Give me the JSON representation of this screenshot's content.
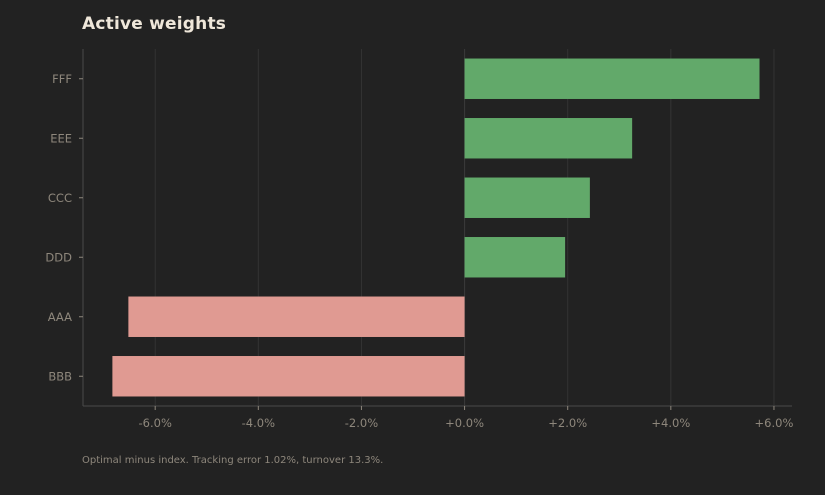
{
  "title": "Active weights",
  "caption": "Optimal minus index. Tracking error 1.02%, turnover 13.3%.",
  "colors": {
    "background": "#222222",
    "positive": "#62a96a",
    "negative": "#e09a92",
    "grid": "#333333",
    "axis": "#4a4a4a",
    "text": "#8e877c",
    "title": "#efe7da"
  },
  "chart_data": {
    "type": "bar",
    "orientation": "horizontal",
    "title": "Active weights",
    "xlabel": "",
    "ylabel": "",
    "categories": [
      "FFF",
      "EEE",
      "CCC",
      "DDD",
      "AAA",
      "BBB"
    ],
    "values": [
      5.72,
      3.25,
      2.43,
      1.95,
      -6.52,
      -6.83
    ],
    "xlim": [
      -7.4,
      6.35
    ],
    "xticks": [
      -6,
      -4,
      -2,
      0,
      2,
      4,
      6
    ],
    "xtick_labels": [
      "-6.0%",
      "-4.0%",
      "-2.0%",
      "+0.0%",
      "+2.0%",
      "+4.0%",
      "+6.0%"
    ],
    "grid": "vertical",
    "legend": "none"
  }
}
